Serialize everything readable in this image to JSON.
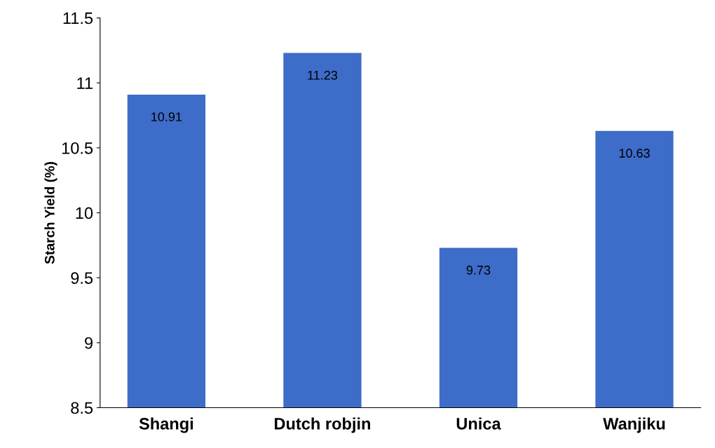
{
  "chart_data": {
    "type": "bar",
    "ylabel": "Starch Yield (%)",
    "categories": [
      "Shangi",
      "Dutch robjin",
      "Unica",
      "Wanjiku"
    ],
    "values": [
      10.91,
      11.23,
      9.73,
      10.63
    ],
    "color": "#3d6cc9",
    "ylim": [
      8.5,
      11.5
    ],
    "yticks": [
      8.5,
      9,
      9.5,
      10,
      10.5,
      11,
      11.5
    ],
    "grid": false,
    "data_labels": true
  }
}
